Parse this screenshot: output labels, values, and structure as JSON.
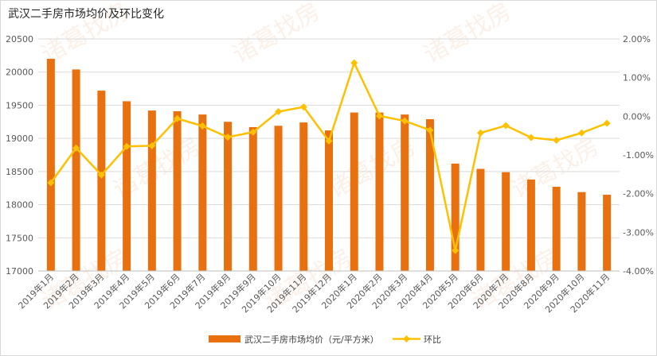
{
  "watermark": "诸葛找房",
  "chart_data": {
    "type": "bar+line",
    "title": "武汉二手房市场均价及环比变化",
    "categories": [
      "2019年1月",
      "2019年2月",
      "2019年3月",
      "2019年4月",
      "2019年5月",
      "2019年6月",
      "2019年7月",
      "2019年8月",
      "2019年9月",
      "2019年10月",
      "2019年11月",
      "2019年12月",
      "2020年1月",
      "2020年2月",
      "2020年3月",
      "2020年4月",
      "2020年5月",
      "2020年6月",
      "2020年7月",
      "2020年8月",
      "2020年9月",
      "2020年10月",
      "2020年11月"
    ],
    "series": [
      {
        "name": "武汉二手房市场均价（元/平方米）",
        "type": "bar",
        "axis": "left",
        "color": "#e8700f",
        "values": [
          20200,
          20040,
          19720,
          19560,
          19420,
          19410,
          19360,
          19250,
          19170,
          19190,
          19240,
          19120,
          19390,
          19390,
          19360,
          19290,
          18620,
          18540,
          18490,
          18380,
          18270,
          18190,
          18150
        ]
      },
      {
        "name": "环比",
        "type": "line",
        "axis": "right",
        "color": "#ffc000",
        "values": [
          -1.72,
          -0.82,
          -1.52,
          -0.78,
          -0.76,
          -0.06,
          -0.25,
          -0.54,
          -0.41,
          0.12,
          0.24,
          -0.64,
          1.38,
          0.01,
          -0.12,
          -0.36,
          -3.47,
          -0.43,
          -0.24,
          -0.55,
          -0.62,
          -0.43,
          -0.18
        ]
      }
    ],
    "y_left": {
      "min": 17000,
      "max": 20500,
      "ticks": [
        "17000",
        "17500",
        "18000",
        "18500",
        "19000",
        "19500",
        "20000",
        "20500"
      ]
    },
    "y_right": {
      "min": -4,
      "max": 2,
      "ticks": [
        "-4.00%",
        "-3.00%",
        "-2.00%",
        "-1.00%",
        "0.00%",
        "1.00%",
        "2.00%"
      ]
    },
    "grid": true,
    "legend_position": "bottom"
  }
}
